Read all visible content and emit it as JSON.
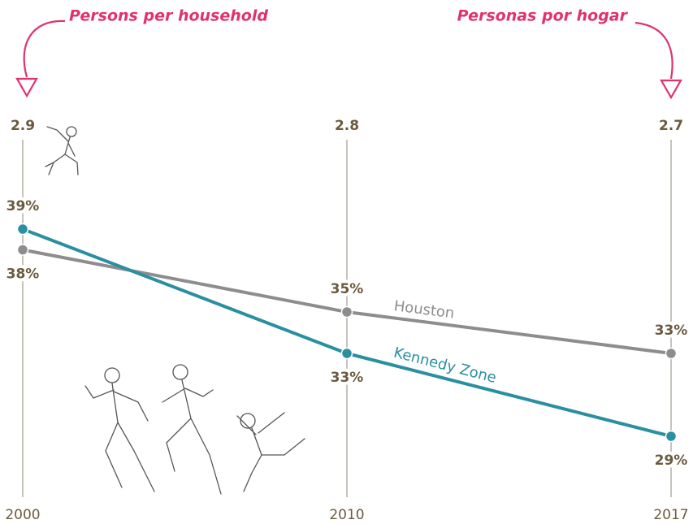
{
  "chart_data": {
    "type": "line",
    "categories": [
      "2000",
      "2010",
      "2017"
    ],
    "series": [
      {
        "name": "Houston",
        "color": "#8d8d8f",
        "values": [
          38,
          35,
          33
        ],
        "value_labels": [
          "38%",
          "35%",
          "33%"
        ]
      },
      {
        "name": "Kennedy Zone",
        "color": "#2a8fa0",
        "values": [
          39,
          33,
          29
        ],
        "value_labels": [
          "39%",
          "33%",
          "29%"
        ]
      }
    ],
    "persons_per_household": [
      2.9,
      2.8,
      2.7
    ],
    "annotations": [
      "Persons per household",
      "Personas por hogar"
    ],
    "ylim": [
      26,
      43
    ],
    "grid": false
  }
}
